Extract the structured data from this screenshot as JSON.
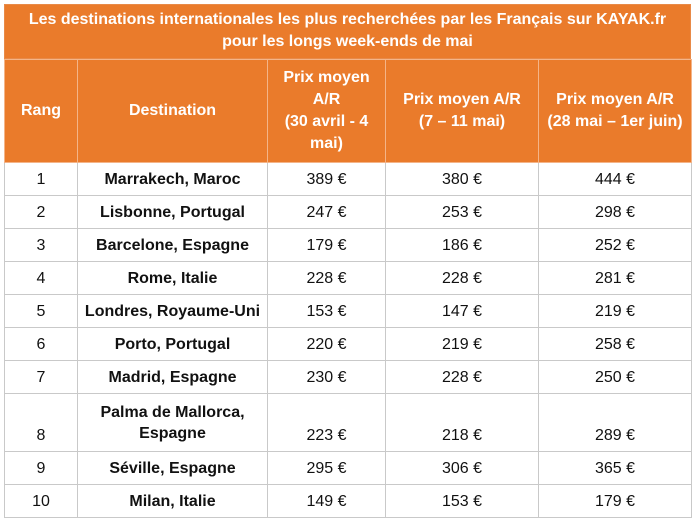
{
  "title": {
    "line1": "Les destinations internationales les plus recherchées par les Français sur KAYAK.fr",
    "line2": "pour les longs week-ends de mai"
  },
  "headers": {
    "rank": "Rang",
    "destination": "Destination",
    "price1_l1": "Prix moyen",
    "price1_l2": "A/R",
    "price1_l3": "(30 avril - 4",
    "price1_l4": "mai)",
    "price2_l1": "Prix moyen A/R",
    "price2_l2": "(7 – 11 mai)",
    "price3_l1": "Prix moyen A/R",
    "price3_l2": "(28 mai – 1er juin)"
  },
  "rows": [
    {
      "rank": "1",
      "destination": "Marrakech, Maroc",
      "p1": "389 €",
      "p2": "380 €",
      "p3": "444 €"
    },
    {
      "rank": "2",
      "destination": "Lisbonne, Portugal",
      "p1": "247 €",
      "p2": "253 €",
      "p3": "298 €"
    },
    {
      "rank": "3",
      "destination": "Barcelone, Espagne",
      "p1": "179 €",
      "p2": "186 €",
      "p3": "252 €"
    },
    {
      "rank": "4",
      "destination": "Rome, Italie",
      "p1": "228 €",
      "p2": "228 €",
      "p3": "281 €"
    },
    {
      "rank": "5",
      "destination": "Londres, Royaume-Uni",
      "p1": "153 €",
      "p2": "147 €",
      "p3": "219 €"
    },
    {
      "rank": "6",
      "destination": "Porto, Portugal",
      "p1": "220 €",
      "p2": "219 €",
      "p3": "258 €"
    },
    {
      "rank": "7",
      "destination": "Madrid, Espagne",
      "p1": "230 €",
      "p2": "228 €",
      "p3": "250 €"
    },
    {
      "rank": "8",
      "destination_l1": "Palma de Mallorca,",
      "destination_l2": "Espagne",
      "p1": "223 €",
      "p2": "218 €",
      "p3": "289 €"
    },
    {
      "rank": "9",
      "destination": "Séville, Espagne",
      "p1": "295 €",
      "p2": "306 €",
      "p3": "365 €"
    },
    {
      "rank": "10",
      "destination": "Milan, Italie",
      "p1": "149 €",
      "p2": "153 €",
      "p3": "179 €"
    }
  ],
  "colors": {
    "header_bg": "#ea7b2b",
    "header_text": "#ffffff",
    "grid": "#c9c9c9"
  }
}
